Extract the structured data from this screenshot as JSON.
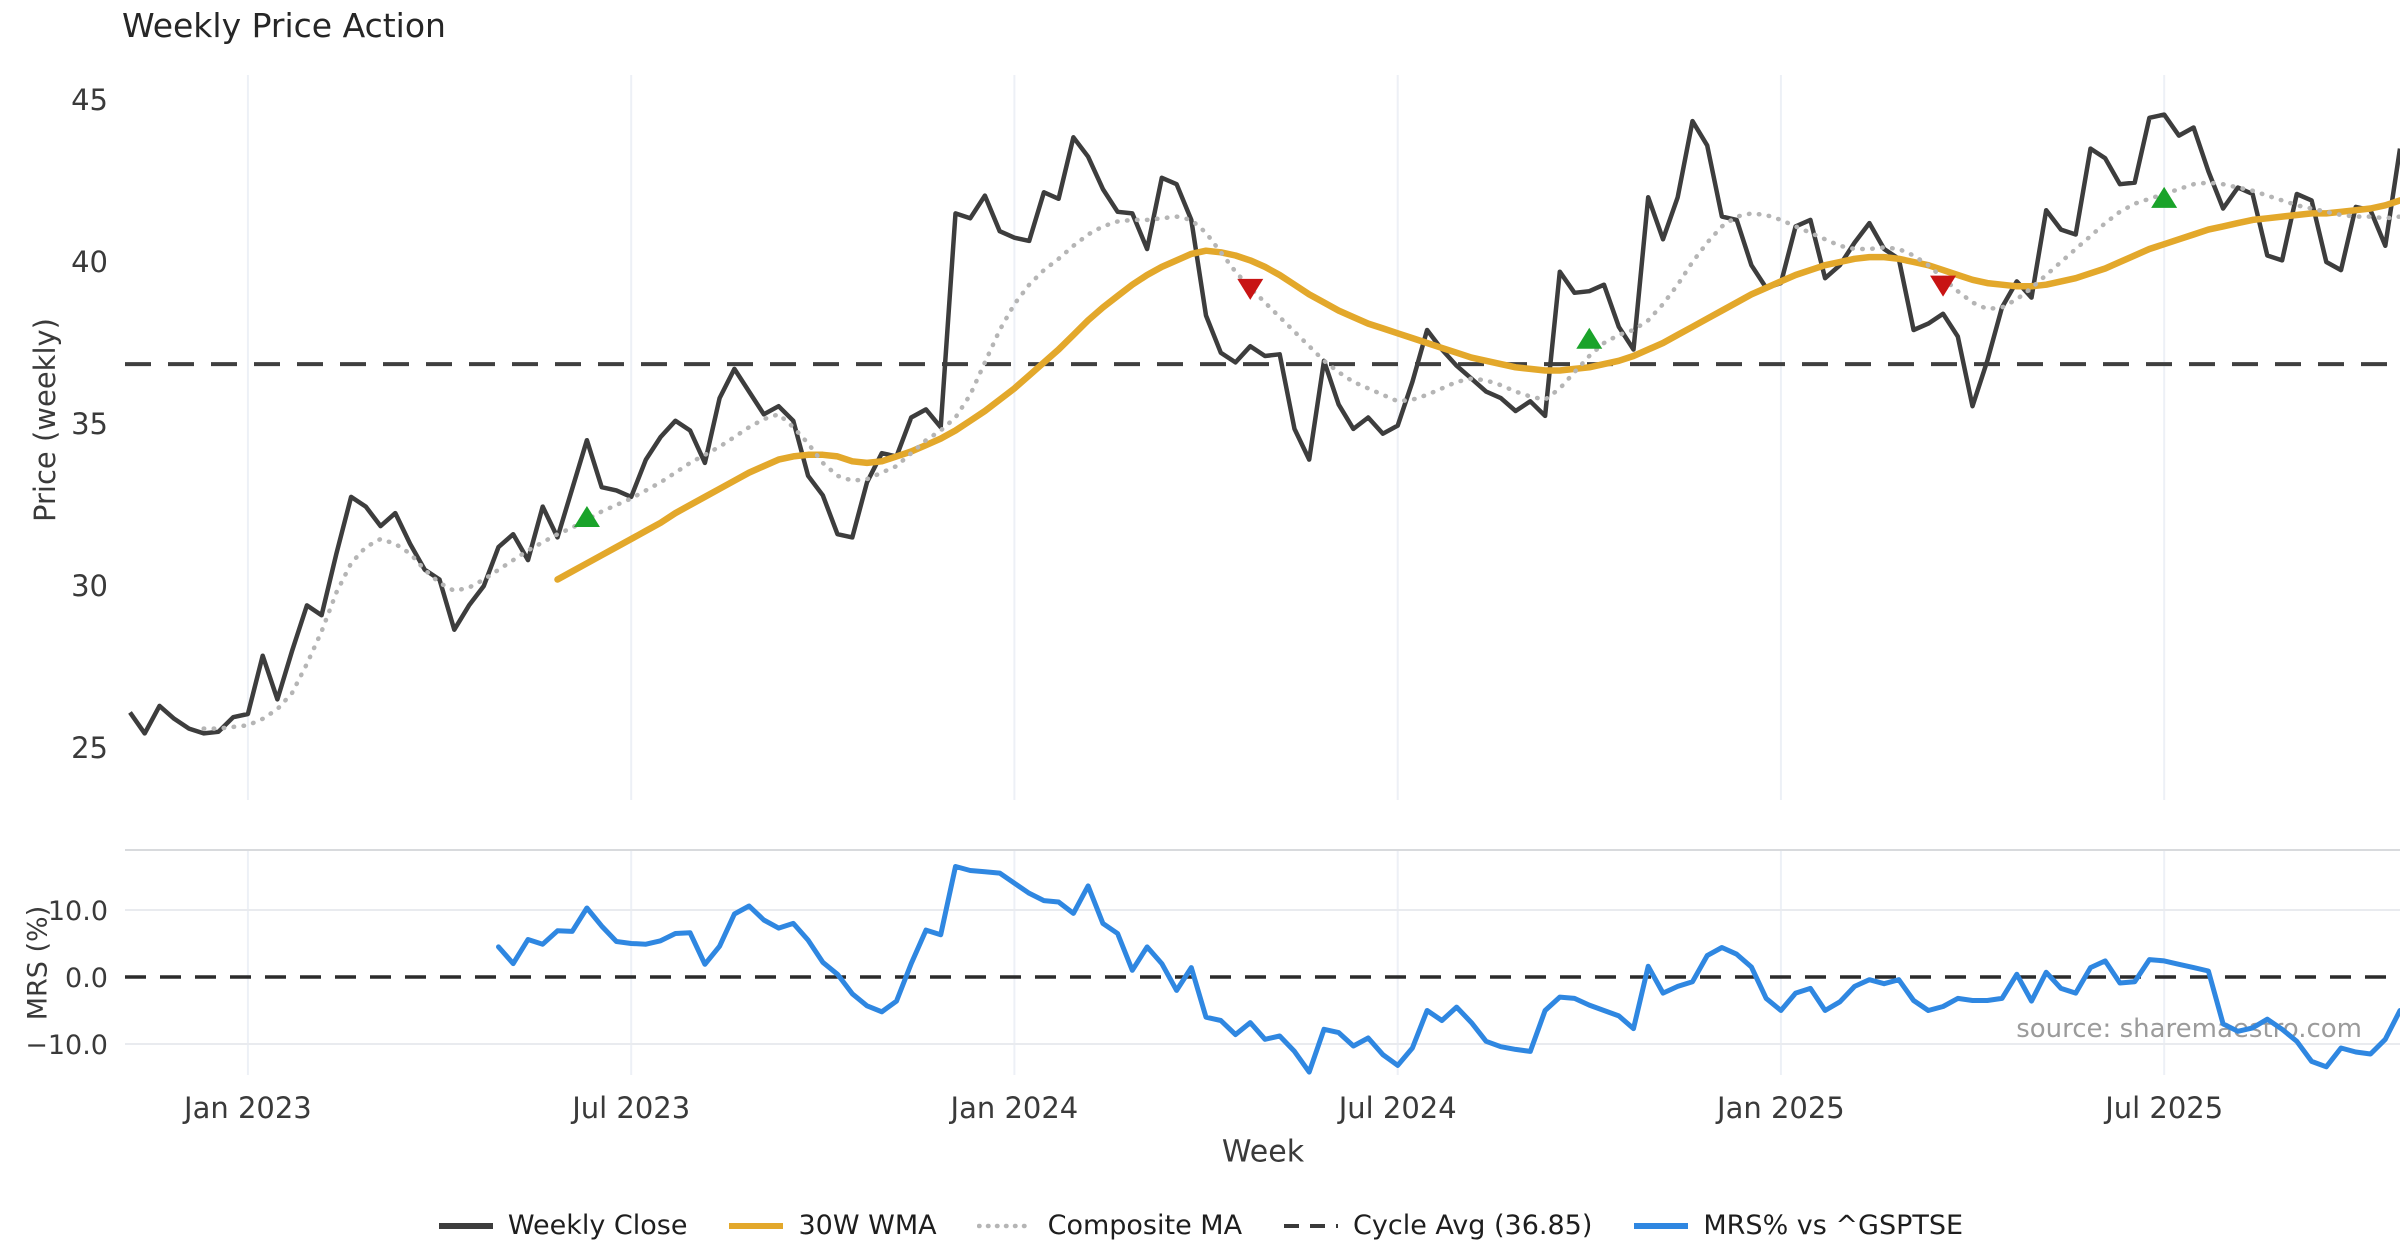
{
  "source_note": "source: sharemaestro.com",
  "xlabel": "Week",
  "legend": [
    {
      "label": "Weekly Close",
      "color": "#3d3d3d",
      "style": "solid"
    },
    {
      "label": "30W WMA",
      "color": "#e3a82b",
      "style": "solid"
    },
    {
      "label": "Composite MA",
      "color": "#b5b5b5",
      "style": "dotted"
    },
    {
      "label": "Cycle Avg (36.85)",
      "color": "#3a3a3a",
      "style": "dashed"
    },
    {
      "label": "MRS% vs ^GSPTSE",
      "color": "#2f87e1",
      "style": "solid"
    }
  ],
  "chart_data": [
    {
      "type": "line",
      "panel": "price",
      "title": "Weekly Price Action",
      "ylabel": "Price (weekly)",
      "ylim": [
        23.4,
        45.8
      ],
      "yticks": [
        25,
        30,
        35,
        40,
        45
      ],
      "grid": "vertical-only",
      "x_unit": "week_index_from_2022-11-06",
      "x_range": [
        0,
        154
      ],
      "x_ticks": [
        {
          "week": 8,
          "label": "Jan 2023"
        },
        {
          "week": 34,
          "label": "Jul 2023"
        },
        {
          "week": 60,
          "label": "Jan 2024"
        },
        {
          "week": 86,
          "label": "Jul 2024"
        },
        {
          "week": 112,
          "label": "Jan 2025"
        },
        {
          "week": 138,
          "label": "Jul 2025"
        }
      ],
      "cycle_avg": 36.85,
      "series": [
        {
          "name": "Weekly Close",
          "color": "#3d3d3d",
          "style": "solid",
          "width": 4.5,
          "values": [
            26.1,
            25.45,
            26.3,
            25.9,
            25.6,
            25.45,
            25.5,
            25.95,
            26.05,
            27.85,
            26.5,
            28.0,
            29.4,
            29.1,
            31.0,
            32.75,
            32.45,
            31.85,
            32.25,
            31.3,
            30.5,
            30.2,
            28.65,
            29.4,
            30.0,
            31.2,
            31.6,
            30.8,
            32.45,
            31.5,
            33.0,
            34.5,
            33.05,
            32.95,
            32.75,
            33.9,
            34.6,
            35.1,
            34.8,
            33.8,
            35.8,
            36.7,
            36.0,
            35.3,
            35.55,
            35.1,
            33.4,
            32.8,
            31.6,
            31.5,
            33.2,
            34.1,
            34.0,
            35.2,
            35.45,
            34.9,
            41.5,
            41.35,
            42.05,
            40.95,
            40.75,
            40.65,
            42.15,
            41.95,
            43.85,
            43.25,
            42.25,
            41.55,
            41.5,
            40.4,
            42.6,
            42.4,
            41.3,
            38.35,
            37.2,
            36.9,
            37.4,
            37.1,
            37.15,
            34.85,
            33.9,
            36.95,
            35.6,
            34.85,
            35.2,
            34.7,
            34.95,
            36.3,
            37.9,
            37.3,
            36.8,
            36.4,
            36.0,
            35.8,
            35.4,
            35.7,
            35.25,
            39.7,
            39.05,
            39.1,
            39.3,
            38.0,
            37.3,
            42.0,
            40.7,
            42.0,
            44.35,
            43.6,
            41.4,
            41.3,
            39.9,
            39.2,
            39.35,
            41.1,
            41.3,
            39.5,
            39.9,
            40.6,
            41.2,
            40.4,
            40.1,
            37.9,
            38.1,
            38.4,
            37.7,
            35.55,
            36.95,
            38.6,
            39.4,
            38.9,
            41.6,
            41.0,
            40.85,
            43.5,
            43.2,
            42.4,
            42.45,
            44.45,
            44.55,
            43.9,
            44.15,
            42.8,
            41.65,
            42.3,
            42.1,
            40.2,
            40.05,
            42.1,
            41.9,
            40.0,
            39.75,
            41.7,
            41.6,
            40.5,
            43.5
          ]
        },
        {
          "name": "30W WMA",
          "color": "#e3a82b",
          "style": "solid",
          "width": 6.5,
          "values": [
            null,
            null,
            null,
            null,
            null,
            null,
            null,
            null,
            null,
            null,
            null,
            null,
            null,
            null,
            null,
            null,
            null,
            null,
            null,
            null,
            null,
            null,
            null,
            null,
            null,
            null,
            null,
            null,
            null,
            30.2,
            30.45,
            30.7,
            30.95,
            31.2,
            31.45,
            31.7,
            31.95,
            32.25,
            32.5,
            32.75,
            33.0,
            33.25,
            33.5,
            33.7,
            33.9,
            34.0,
            34.05,
            34.05,
            34.0,
            33.85,
            33.8,
            33.85,
            34.0,
            34.15,
            34.35,
            34.55,
            34.8,
            35.1,
            35.4,
            35.75,
            36.1,
            36.5,
            36.9,
            37.3,
            37.75,
            38.2,
            38.6,
            38.95,
            39.3,
            39.6,
            39.85,
            40.05,
            40.25,
            40.35,
            40.3,
            40.2,
            40.05,
            39.85,
            39.6,
            39.3,
            39.0,
            38.75,
            38.5,
            38.3,
            38.1,
            37.95,
            37.8,
            37.65,
            37.5,
            37.35,
            37.2,
            37.05,
            36.95,
            36.85,
            36.75,
            36.7,
            36.65,
            36.65,
            36.7,
            36.75,
            36.85,
            36.95,
            37.1,
            37.3,
            37.5,
            37.75,
            38.0,
            38.25,
            38.5,
            38.75,
            39.0,
            39.2,
            39.4,
            39.6,
            39.75,
            39.9,
            40.0,
            40.1,
            40.15,
            40.15,
            40.1,
            40.0,
            39.9,
            39.75,
            39.6,
            39.45,
            39.35,
            39.3,
            39.25,
            39.25,
            39.3,
            39.4,
            39.5,
            39.65,
            39.8,
            40.0,
            40.2,
            40.4,
            40.55,
            40.7,
            40.85,
            41.0,
            41.1,
            41.2,
            41.3,
            41.35,
            41.4,
            41.45,
            41.5,
            41.5,
            41.55,
            41.6,
            41.65,
            41.75,
            41.9
          ]
        },
        {
          "name": "Composite MA",
          "color": "#b5b5b5",
          "style": "dotted",
          "width": 4.5,
          "values": [
            null,
            null,
            null,
            null,
            null,
            25.6,
            25.6,
            25.65,
            25.7,
            25.9,
            26.2,
            26.7,
            27.6,
            28.6,
            29.8,
            30.7,
            31.2,
            31.45,
            31.3,
            31.0,
            30.5,
            30.1,
            29.85,
            29.95,
            30.2,
            30.5,
            30.8,
            31.1,
            31.35,
            31.6,
            31.8,
            32.05,
            32.3,
            32.5,
            32.7,
            32.95,
            33.2,
            33.5,
            33.8,
            34.05,
            34.3,
            34.6,
            34.9,
            35.15,
            35.3,
            34.9,
            34.4,
            33.8,
            33.4,
            33.25,
            33.3,
            33.5,
            33.7,
            34.1,
            34.5,
            34.8,
            35.2,
            35.9,
            36.9,
            37.9,
            38.7,
            39.3,
            39.75,
            40.1,
            40.5,
            40.85,
            41.1,
            41.25,
            41.3,
            41.3,
            41.35,
            41.4,
            41.3,
            40.9,
            40.3,
            39.7,
            39.2,
            38.75,
            38.3,
            37.85,
            37.4,
            36.95,
            36.6,
            36.3,
            36.1,
            35.9,
            35.7,
            35.75,
            35.9,
            36.1,
            36.3,
            36.4,
            36.35,
            36.2,
            36.0,
            35.85,
            35.75,
            36.1,
            36.6,
            37.1,
            37.5,
            37.75,
            37.9,
            38.2,
            38.7,
            39.3,
            40.0,
            40.6,
            41.1,
            41.4,
            41.5,
            41.45,
            41.3,
            41.1,
            40.9,
            40.7,
            40.5,
            40.4,
            40.4,
            40.45,
            40.4,
            40.2,
            39.9,
            39.5,
            39.1,
            38.75,
            38.55,
            38.6,
            38.85,
            39.2,
            39.6,
            40.0,
            40.4,
            40.8,
            41.2,
            41.55,
            41.8,
            41.95,
            42.1,
            42.25,
            42.4,
            42.45,
            42.4,
            42.3,
            42.2,
            42.05,
            41.9,
            41.75,
            41.65,
            41.55,
            41.45,
            41.4,
            41.4,
            41.35,
            41.4
          ]
        }
      ],
      "markers": {
        "buy": {
          "shape": "triangle-up",
          "color": "#1aa32a",
          "points": [
            {
              "week": 31,
              "value": 32.1
            },
            {
              "week": 99,
              "value": 37.6
            },
            {
              "week": 138,
              "value": 41.95
            }
          ]
        },
        "sell": {
          "shape": "triangle-down",
          "color": "#c81414",
          "points": [
            {
              "week": 76,
              "value": 39.2
            },
            {
              "week": 123,
              "value": 39.3
            }
          ]
        }
      }
    },
    {
      "type": "line",
      "panel": "mrs",
      "ylabel": "MRS (%)",
      "ylim": [
        -14.6,
        19.0
      ],
      "yticks": [
        {
          "v": 10,
          "label": "10.0"
        },
        {
          "v": 0,
          "label": "0.0"
        },
        {
          "v": -10,
          "label": "−10.0"
        }
      ],
      "zero_line": 0,
      "series": [
        {
          "name": "MRS% vs ^GSPTSE",
          "color": "#2f87e1",
          "style": "solid",
          "width": 5,
          "values": [
            null,
            null,
            null,
            null,
            null,
            null,
            null,
            null,
            null,
            null,
            null,
            null,
            null,
            null,
            null,
            null,
            null,
            null,
            null,
            null,
            null,
            null,
            null,
            null,
            null,
            4.5,
            2.0,
            5.6,
            4.9,
            6.9,
            6.8,
            10.3,
            7.6,
            5.3,
            5.0,
            4.9,
            5.4,
            6.5,
            6.6,
            1.9,
            4.6,
            9.4,
            10.6,
            8.5,
            7.3,
            8.0,
            5.5,
            2.2,
            0.4,
            -2.5,
            -4.3,
            -5.2,
            -3.6,
            2.0,
            7.0,
            6.3,
            16.5,
            15.9,
            15.7,
            15.5,
            14.0,
            12.5,
            11.4,
            11.2,
            9.5,
            13.6,
            8.0,
            6.5,
            1.0,
            4.5,
            2.0,
            -2.0,
            1.4,
            -6.0,
            -6.5,
            -8.6,
            -6.8,
            -9.3,
            -8.8,
            -11.1,
            -14.2,
            -7.8,
            -8.3,
            -10.3,
            -9.1,
            -11.6,
            -13.2,
            -10.6,
            -5.0,
            -6.5,
            -4.5,
            -6.8,
            -9.6,
            -10.4,
            -10.8,
            -11.1,
            -5.0,
            -3.0,
            -3.2,
            -4.2,
            -5.0,
            -5.8,
            -7.7,
            1.6,
            -2.4,
            -1.4,
            -0.7,
            3.2,
            4.4,
            3.4,
            1.5,
            -3.2,
            -5.0,
            -2.4,
            -1.7,
            -5.0,
            -3.7,
            -1.4,
            -0.4,
            -1.0,
            -0.4,
            -3.5,
            -5.0,
            -4.4,
            -3.2,
            -3.5,
            -3.5,
            -3.2,
            0.4,
            -3.6,
            0.7,
            -1.7,
            -2.4,
            1.4,
            2.4,
            -0.9,
            -0.7,
            2.6,
            2.4,
            1.9,
            1.4,
            0.9,
            -7.0,
            -8.1,
            -7.6,
            -6.3,
            -7.8,
            -9.6,
            -12.6,
            -13.4,
            -10.6,
            -11.2,
            -11.5,
            -9.3,
            -5.0
          ]
        }
      ]
    }
  ]
}
